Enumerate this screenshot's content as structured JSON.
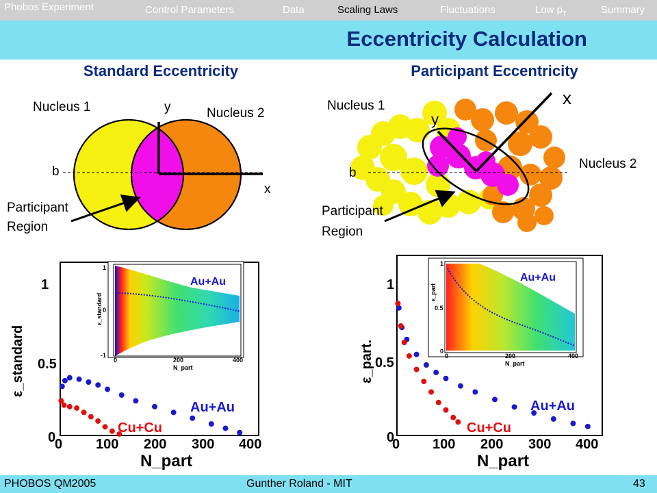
{
  "nav": {
    "brand": "Phobos Experiment",
    "items": [
      {
        "label": "Control Parameters",
        "active": false
      },
      {
        "label": "Data",
        "active": false
      },
      {
        "label": "Scaling Laws",
        "active": true
      },
      {
        "label": "Fluctuations",
        "active": false
      },
      {
        "label": "Low p",
        "sub": "T",
        "active": false
      },
      {
        "label": "Summary",
        "active": false
      }
    ]
  },
  "title": "Eccentricity Calculation",
  "standard": {
    "heading": "Standard Eccentricity",
    "nucleus1": "Nucleus 1",
    "nucleus2": "Nucleus 2",
    "axis_x": "x",
    "axis_y": "y",
    "impact": "b",
    "participant_line1": "Participant",
    "participant_line2": "Region"
  },
  "participant": {
    "heading": "Participant Eccentricity",
    "nucleus1": "Nucleus 1",
    "nucleus2": "Nucleus 2",
    "axis_x": "x",
    "axis_y": "y",
    "impact": "b",
    "participant_line1": "Participant",
    "participant_line2": "Region"
  },
  "colors": {
    "nucleus1": "#f5f010",
    "nucleus2": "#f5870f",
    "overlap": "#f00fe8",
    "nav_bar": "#cfcfcf",
    "title_bar": "#7fe0f2",
    "heading_text": "#0a2a80",
    "au_series": "#1a1acc",
    "cu_series": "#e01010"
  },
  "chart_data": [
    {
      "type": "scatter",
      "ylabel": "ε_standard",
      "xlabel": "N_part",
      "xticks": [
        "0",
        "100",
        "200",
        "300",
        "400"
      ],
      "yticks": [
        "0",
        "0.5",
        "1"
      ],
      "xlim": [
        0,
        400
      ],
      "ylim": [
        0,
        1.2
      ],
      "series": [
        {
          "name": "Au+Au",
          "color": "#1a1acc",
          "x": [
            4,
            10,
            20,
            40,
            60,
            80,
            100,
            130,
            160,
            200,
            240,
            280,
            320,
            350,
            380
          ],
          "y": [
            0.34,
            0.38,
            0.4,
            0.39,
            0.37,
            0.35,
            0.32,
            0.28,
            0.24,
            0.2,
            0.16,
            0.12,
            0.08,
            0.05,
            0.02
          ]
        },
        {
          "name": "Cu+Cu",
          "color": "#e01010",
          "x": [
            2,
            8,
            20,
            35,
            50,
            65,
            80,
            95,
            110,
            125
          ],
          "y": [
            0.24,
            0.21,
            0.2,
            0.19,
            0.16,
            0.13,
            0.1,
            0.06,
            0.03,
            0.01
          ]
        }
      ],
      "inset": {
        "type": "heatmap",
        "label": "Au+Au",
        "ylabel": "ε_standard",
        "xlabel": "N_part",
        "xticks": [
          "0",
          "200",
          "400"
        ],
        "yticks": [
          "-1",
          "0",
          "1"
        ],
        "xlim": [
          0,
          400
        ],
        "ylim": [
          -1,
          1
        ],
        "mean_curve": {
          "x": [
            5,
            40,
            100,
            200,
            300,
            400
          ],
          "y": [
            0.35,
            0.4,
            0.33,
            0.2,
            0.1,
            0.02
          ]
        }
      }
    },
    {
      "type": "scatter",
      "ylabel": "ε_part.",
      "xlabel": "N_part",
      "xticks": [
        "0",
        "100",
        "200",
        "300",
        "400"
      ],
      "yticks": [
        "0",
        "0.5",
        "1"
      ],
      "xlim": [
        0,
        400
      ],
      "ylim": [
        0,
        1.2
      ],
      "series": [
        {
          "name": "Au+Au",
          "color": "#1a1acc",
          "x": [
            4,
            10,
            20,
            40,
            60,
            80,
            100,
            130,
            160,
            200,
            240,
            280,
            320,
            360,
            390
          ],
          "y": [
            0.85,
            0.72,
            0.64,
            0.54,
            0.47,
            0.42,
            0.38,
            0.33,
            0.29,
            0.24,
            0.19,
            0.15,
            0.11,
            0.08,
            0.06
          ]
        },
        {
          "name": "Cu+Cu",
          "color": "#e01010",
          "x": [
            2,
            8,
            15,
            25,
            40,
            55,
            70,
            85,
            100,
            115,
            125
          ],
          "y": [
            0.88,
            0.73,
            0.62,
            0.53,
            0.44,
            0.36,
            0.29,
            0.22,
            0.17,
            0.12,
            0.09
          ]
        }
      ],
      "inset": {
        "type": "heatmap",
        "label": "Au+Au",
        "ylabel": "ε_part",
        "xlabel": "N_part",
        "xticks": [
          "0",
          "200",
          "400"
        ],
        "yticks": [
          "0",
          "0.5",
          "1"
        ],
        "xlim": [
          0,
          400
        ],
        "ylim": [
          0,
          1
        ],
        "mean_curve": {
          "x": [
            5,
            40,
            100,
            200,
            300,
            400
          ],
          "y": [
            0.85,
            0.6,
            0.45,
            0.3,
            0.18,
            0.08
          ]
        }
      }
    }
  ],
  "footer": {
    "left": "PHOBOS QM2005",
    "center": "Gunther Roland - MIT",
    "page": "43"
  }
}
